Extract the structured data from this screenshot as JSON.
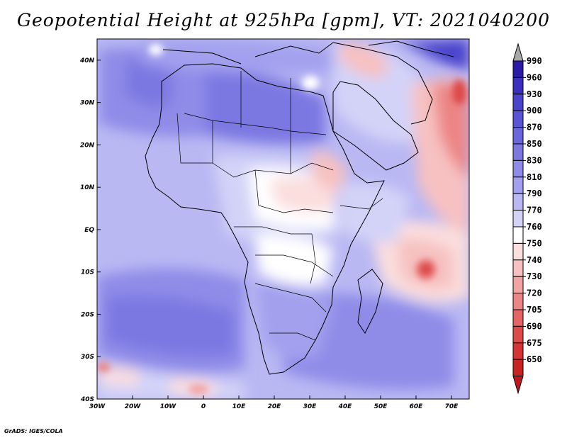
{
  "title": "Geopotential Height at 925hPa [gpm], VT: 2021040200",
  "credit": "GrADS: IGES/COLA",
  "map": {
    "lon_range": [
      -30,
      75
    ],
    "lat_range": [
      -40,
      45
    ],
    "lon_ticks": [
      {
        "value": -30,
        "label": "30W"
      },
      {
        "value": -20,
        "label": "20W"
      },
      {
        "value": -10,
        "label": "10W"
      },
      {
        "value": 0,
        "label": "0"
      },
      {
        "value": 10,
        "label": "10E"
      },
      {
        "value": 20,
        "label": "20E"
      },
      {
        "value": 30,
        "label": "30E"
      },
      {
        "value": 40,
        "label": "40E"
      },
      {
        "value": 50,
        "label": "50E"
      },
      {
        "value": 60,
        "label": "60E"
      },
      {
        "value": 70,
        "label": "70E"
      }
    ],
    "lat_ticks": [
      {
        "value": 40,
        "label": "40N"
      },
      {
        "value": 30,
        "label": "30N"
      },
      {
        "value": 20,
        "label": "20N"
      },
      {
        "value": 10,
        "label": "10N"
      },
      {
        "value": 0,
        "label": "EQ"
      },
      {
        "value": -10,
        "label": "10S"
      },
      {
        "value": -20,
        "label": "20S"
      },
      {
        "value": -30,
        "label": "30S"
      },
      {
        "value": -40,
        "label": "40S"
      }
    ]
  },
  "colorbar": {
    "levels": [
      "990",
      "960",
      "930",
      "900",
      "870",
      "850",
      "830",
      "810",
      "790",
      "770",
      "760",
      "750",
      "740",
      "730",
      "720",
      "705",
      "690",
      "675",
      "650"
    ],
    "colors": [
      "#2c1ba8",
      "#3a30bf",
      "#4a43cb",
      "#5a55d4",
      "#6a66dc",
      "#7b78e2",
      "#8f8ce8",
      "#a3a1ee",
      "#b9b8f3",
      "#d3d3f8",
      "#ffffff",
      "#fbdede",
      "#f7c1c1",
      "#f2a3a3",
      "#ec8585",
      "#e56464",
      "#dd4a4a",
      "#d43434",
      "#c82222"
    ],
    "top_color": "#a8a8a8",
    "bottom_color": "#c0141e"
  }
}
